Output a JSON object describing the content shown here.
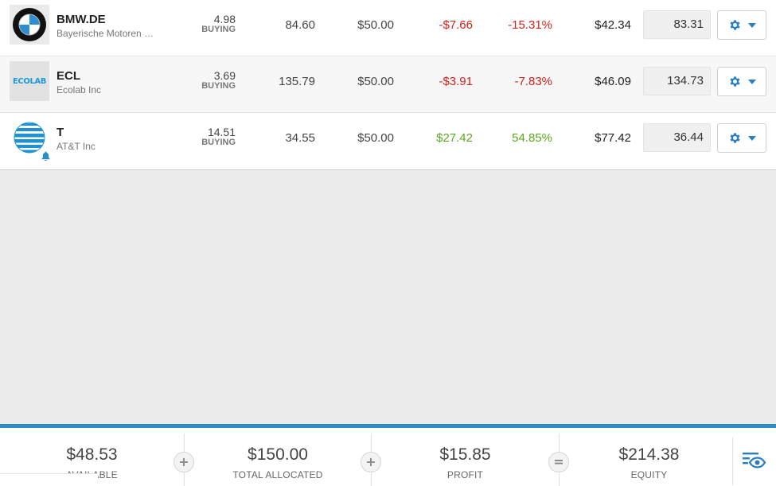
{
  "positions": [
    {
      "symbol": "BMW.DE",
      "name": "Bayerische Motoren …",
      "units": "4.98",
      "mode": "BUYING",
      "open_rate": "84.60",
      "invested": "$50.00",
      "pl": "-$7.66",
      "pl_pct": "-15.31%",
      "value": "$42.34",
      "rate": "83.31",
      "logo": "bmw-logo",
      "trend": "negative"
    },
    {
      "symbol": "ECL",
      "name": "Ecolab Inc",
      "units": "3.69",
      "mode": "BUYING",
      "open_rate": "135.79",
      "invested": "$50.00",
      "pl": "-$3.91",
      "pl_pct": "-7.83%",
      "value": "$46.09",
      "rate": "134.73",
      "logo": "ecolab-logo",
      "logo_text": "ECOLAB",
      "trend": "negative"
    },
    {
      "symbol": "T",
      "name": "AT&T Inc",
      "units": "14.51",
      "mode": "BUYING",
      "open_rate": "34.55",
      "invested": "$50.00",
      "pl": "$27.42",
      "pl_pct": "54.85%",
      "value": "$77.42",
      "rate": "36.44",
      "logo": "att-logo",
      "alert_icon": "bell-icon",
      "trend": "positive"
    }
  ],
  "footer": {
    "available": {
      "value": "$48.53",
      "label": "AVAILABLE"
    },
    "allocated": {
      "value": "$150.00",
      "label": "TOTAL ALLOCATED"
    },
    "profit": {
      "value": "$15.85",
      "label": "PROFIT"
    },
    "equity": {
      "value": "$214.38",
      "label": "EQUITY"
    },
    "operators": [
      "+",
      "+",
      "="
    ],
    "view_icon": "eye-icon"
  },
  "colors": {
    "negative": "#d0211b",
    "positive": "#5ca61f",
    "accent": "#2a8dc4"
  }
}
